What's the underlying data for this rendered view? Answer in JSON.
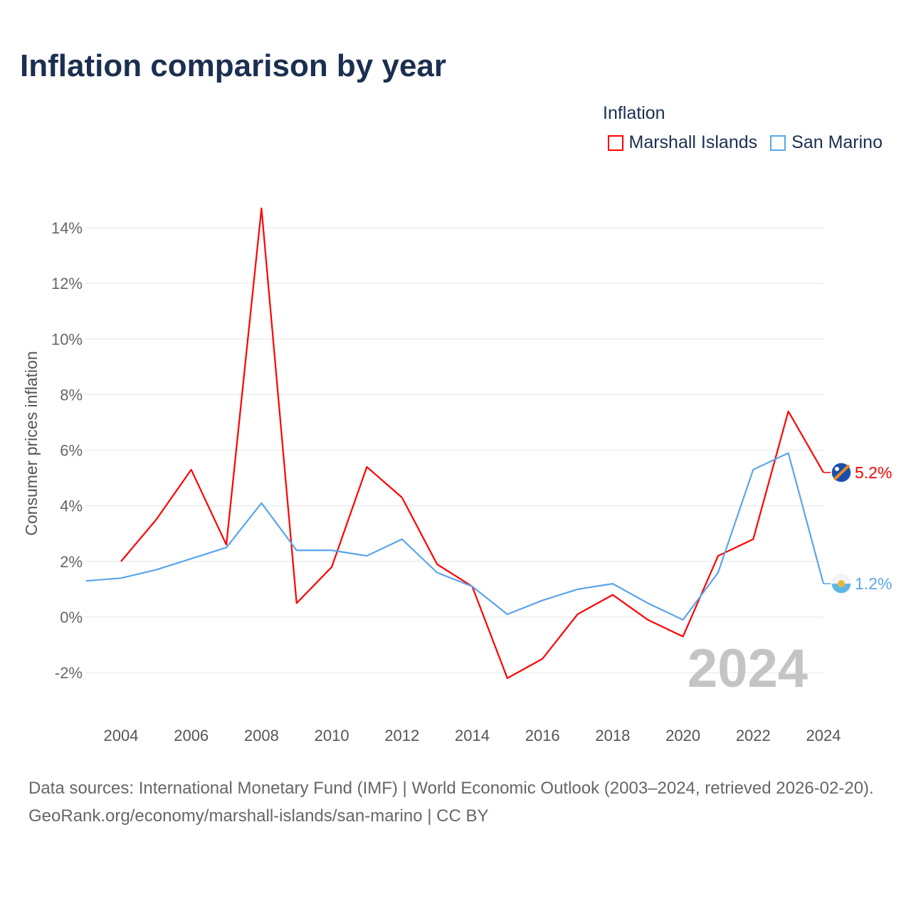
{
  "title": "Inflation comparison by year",
  "legend": {
    "title": "Inflation",
    "items": [
      {
        "label": "Marshall Islands",
        "color": "#ff0000"
      },
      {
        "label": "San Marino",
        "color": "#5aa5ea"
      }
    ]
  },
  "watermark": "2024",
  "footer": {
    "sources": "Data sources: International Monetary Fund (IMF) | World Economic Outlook (2003–2024, retrieved 2026-02-20).",
    "link": "GeoRank.org/economy/marshall-islands/san-marino | CC BY"
  },
  "chart_data": {
    "type": "line",
    "title": "Inflation comparison by year",
    "xlabel": "",
    "ylabel": "Consumer prices inflation",
    "xlim": [
      2003,
      2024
    ],
    "ylim": [
      -3,
      15
    ],
    "yticks": [
      -2,
      0,
      2,
      4,
      6,
      8,
      10,
      12,
      14
    ],
    "ytick_labels": [
      "-2%",
      "0%",
      "2%",
      "4%",
      "6%",
      "8%",
      "10%",
      "12%",
      "14%"
    ],
    "xticks": [
      2004,
      2006,
      2008,
      2010,
      2012,
      2014,
      2016,
      2018,
      2020,
      2022,
      2024
    ],
    "xtick_labels": [
      "2004",
      "2006",
      "2008",
      "2010",
      "2012",
      "2014",
      "2016",
      "2018",
      "2020",
      "2022",
      "2024"
    ],
    "grid": true,
    "legend_position": "top-right",
    "series": [
      {
        "name": "Marshall Islands",
        "color": "#ff0000",
        "end_label": "5.2%",
        "x": [
          2004,
          2005,
          2006,
          2007,
          2008,
          2009,
          2010,
          2011,
          2012,
          2013,
          2014,
          2015,
          2016,
          2017,
          2018,
          2019,
          2020,
          2021,
          2022,
          2023,
          2024
        ],
        "values": [
          2.0,
          3.5,
          5.3,
          2.6,
          14.7,
          0.5,
          1.8,
          5.4,
          4.3,
          1.9,
          1.1,
          -2.2,
          -1.5,
          0.1,
          0.8,
          -0.1,
          -0.7,
          2.2,
          2.8,
          7.4,
          5.2
        ]
      },
      {
        "name": "San Marino",
        "color": "#5aa5ea",
        "end_label": "1.2%",
        "x": [
          2003,
          2004,
          2005,
          2006,
          2007,
          2008,
          2009,
          2010,
          2011,
          2012,
          2013,
          2014,
          2015,
          2016,
          2017,
          2018,
          2019,
          2020,
          2021,
          2022,
          2023,
          2024
        ],
        "values": [
          1.3,
          1.4,
          1.7,
          2.1,
          2.5,
          4.1,
          2.4,
          2.4,
          2.2,
          2.8,
          1.6,
          1.1,
          0.1,
          0.6,
          1.0,
          1.2,
          0.5,
          -0.1,
          1.6,
          5.3,
          5.9,
          1.2
        ]
      }
    ]
  }
}
